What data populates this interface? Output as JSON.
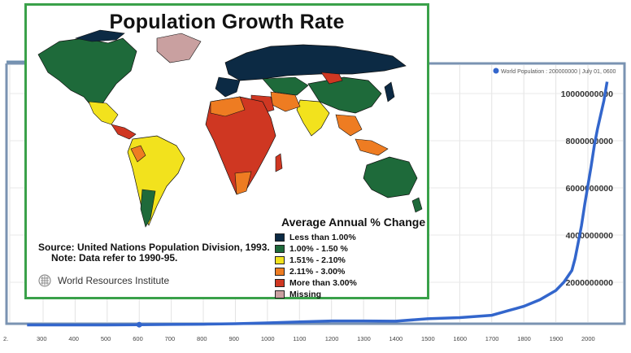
{
  "chart_data": {
    "type": "line",
    "legend_label": "World Population : 200000000 | July 01, 0600",
    "x": [
      250,
      300,
      400,
      500,
      600,
      700,
      800,
      900,
      1000,
      1100,
      1200,
      1300,
      1400,
      1500,
      1600,
      1700,
      1750,
      1800,
      1850,
      1900,
      1925,
      1950,
      1960,
      1970,
      1980,
      1990,
      2000,
      2010,
      2020,
      2030,
      2050,
      2060
    ],
    "y": [
      190000000,
      190000000,
      190000000,
      190000000,
      200000000,
      210000000,
      220000000,
      240000000,
      275000000,
      320000000,
      360000000,
      360000000,
      350000000,
      450000000,
      500000000,
      600000000,
      790000000,
      980000000,
      1260000000,
      1650000000,
      2000000000,
      2500000000,
      3000000000,
      3700000000,
      4400000000,
      5300000000,
      6100000000,
      6900000000,
      7800000000,
      8500000000,
      9700000000,
      10500000000
    ],
    "xticks": [
      "300",
      "400",
      "500",
      "600",
      "700",
      "800",
      "900",
      "1000",
      "1100",
      "1200",
      "1300",
      "1400",
      "1500",
      "1600",
      "1700",
      "1800",
      "1900",
      "2000",
      "2."
    ],
    "yticks": [
      "2000000000",
      "4000000000",
      "6000000000",
      "8000000000",
      "10000000000"
    ],
    "highlight_x": 600,
    "line_color": "#3366cc"
  },
  "map": {
    "title": "Population Growth Rate",
    "source_line1": "Source: United Nations Population Division, 1993.",
    "source_line2": "Note: Data refer to 1990-95.",
    "publisher": "World Resources Institute",
    "legend_title": "Average Annual % Change",
    "legend": [
      {
        "label": "Less than 1.00%",
        "color": "#0c2a44"
      },
      {
        "label": "1.00% - 1.50 %",
        "color": "#1e6a3a"
      },
      {
        "label": "1.51% - 2.10%",
        "color": "#f2e21d"
      },
      {
        "label": "2.11% - 3.00%",
        "color": "#ee7c22"
      },
      {
        "label": "More than 3.00%",
        "color": "#cf3722"
      },
      {
        "label": "Missing",
        "color": "#c9a0a0"
      }
    ]
  }
}
